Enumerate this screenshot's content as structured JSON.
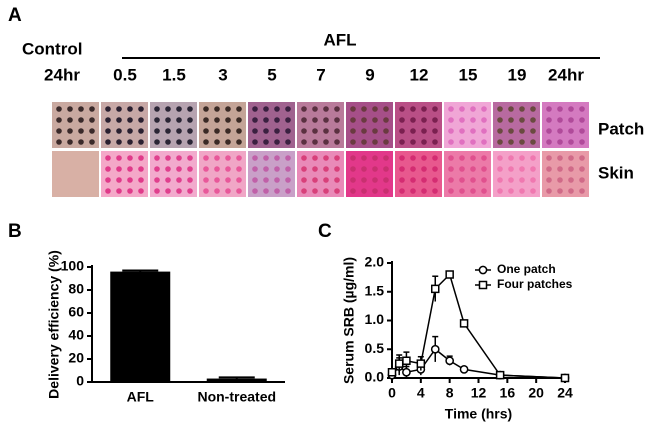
{
  "panel_a": {
    "panel_label": "A",
    "control_label": "Control",
    "group_label": "AFL",
    "times": [
      "24hr",
      "0.5",
      "1.5",
      "3",
      "5",
      "7",
      "9",
      "12",
      "15",
      "19",
      "24hr"
    ],
    "rows": [
      "Patch",
      "Skin"
    ]
  },
  "chart_data": [
    {
      "type": "bar",
      "panel_label": "B",
      "y_label": "Delivery efficiency (%)",
      "categories": [
        "AFL",
        "Non-treated"
      ],
      "values": [
        96,
        3
      ],
      "errors": [
        1,
        1
      ],
      "color": "#000000",
      "ylim": [
        0,
        100
      ],
      "yticks": [
        0,
        20,
        40,
        60,
        80,
        100
      ]
    },
    {
      "type": "line",
      "panel_label": "C",
      "y_label": "Serum SRB (µg/ml)",
      "x_label": "Time (hrs)",
      "x": [
        0,
        1,
        2,
        4,
        6,
        8,
        10,
        15,
        24
      ],
      "series": [
        {
          "name": "One patch",
          "marker": "circle",
          "color": "#000000",
          "values": [
            0.05,
            0.2,
            0.1,
            0.15,
            0.5,
            0.3,
            0.15,
            0.05,
            0.0
          ],
          "errors": [
            0.05,
            0.15,
            0.1,
            0.1,
            0.22,
            0.08,
            0.03,
            0.02,
            0.01
          ]
        },
        {
          "name": "Four patches",
          "marker": "square",
          "color": "#000000",
          "values": [
            0.1,
            0.25,
            0.3,
            0.25,
            1.55,
            1.8,
            0.95,
            0.05,
            0.0
          ],
          "errors": [
            0.05,
            0.15,
            0.15,
            0.12,
            0.22,
            0.03,
            0.05,
            0.03,
            0.01
          ]
        }
      ],
      "xlim": [
        0,
        24
      ],
      "xticks": [
        0,
        4,
        8,
        12,
        16,
        20,
        24
      ],
      "ylim": [
        0,
        2
      ],
      "yticks": [
        {
          "value": 0,
          "label": "0.0"
        },
        0.5,
        {
          "value": 1,
          "label": "1.0"
        },
        1.5,
        {
          "value": 2,
          "label": "2.0"
        }
      ],
      "legend": "upper right"
    }
  ]
}
